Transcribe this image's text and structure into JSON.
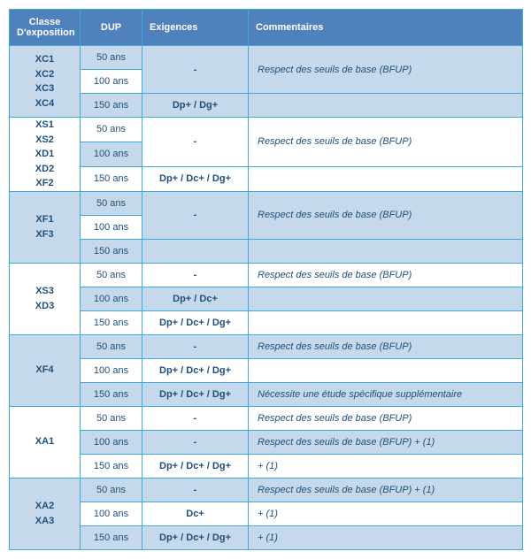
{
  "headers": {
    "classe": "Classe\nD'exposition",
    "dup": "DUP",
    "exigences": "Exigences",
    "commentaires": "Commentaires"
  },
  "groups": [
    {
      "classe": "XC1\nXC2\nXC3\nXC4",
      "bg": "blue",
      "rows": [
        {
          "dup": "50 ans",
          "exig": "",
          "comm": "",
          "exig_rowspan": 2,
          "comm_rowspan": 2,
          "exig_text": "-",
          "comm_text": "Respect des seuils de base (BFUP)"
        },
        {
          "dup": "100 ans"
        },
        {
          "dup": "150 ans",
          "exig_text": "Dp+ / Dg+",
          "comm_text": ""
        }
      ]
    },
    {
      "classe": "XS1\nXS2\nXD1\nXD2\nXF2",
      "bg": "white",
      "rows": [
        {
          "dup": "50 ans",
          "exig_rowspan": 2,
          "comm_rowspan": 2,
          "exig_text": "-",
          "comm_text": "Respect des seuils de base (BFUP)"
        },
        {
          "dup": "100 ans"
        },
        {
          "dup": "150 ans",
          "exig_text": "Dp+ / Dc+ / Dg+",
          "comm_text": ""
        }
      ]
    },
    {
      "classe": "XF1\nXF3",
      "bg": "blue",
      "rows": [
        {
          "dup": "50 ans",
          "exig_rowspan": 2,
          "comm_rowspan": 2,
          "exig_text": "-",
          "comm_text": "Respect des seuils de base (BFUP)"
        },
        {
          "dup": "100 ans"
        },
        {
          "dup": "150 ans",
          "exig_text": "",
          "comm_text": ""
        }
      ]
    },
    {
      "classe": "XS3\nXD3",
      "bg": "white",
      "rows": [
        {
          "dup": "50 ans",
          "exig_text": "-",
          "comm_text": "Respect des seuils de base (BFUP)"
        },
        {
          "dup": "100 ans",
          "exig_text": "Dp+ / Dc+",
          "comm_text": ""
        },
        {
          "dup": "150 ans",
          "exig_text": "Dp+ / Dc+ / Dg+",
          "comm_text": ""
        }
      ]
    },
    {
      "classe": "XF4",
      "bg": "blue",
      "rows": [
        {
          "dup": "50 ans",
          "exig_text": "-",
          "comm_text": "Respect des seuils de base (BFUP)"
        },
        {
          "dup": "100 ans",
          "exig_text": "Dp+ / Dc+ / Dg+",
          "comm_text": ""
        },
        {
          "dup": "150 ans",
          "exig_text": "Dp+ / Dc+ / Dg+",
          "comm_text": "Nécessite une étude spécifique supplémentaire"
        }
      ]
    },
    {
      "classe": "XA1",
      "bg": "white",
      "rows": [
        {
          "dup": "50 ans",
          "exig_text": "-",
          "comm_text": "Respect des seuils de base (BFUP)"
        },
        {
          "dup": "100 ans",
          "exig_text": "-",
          "comm_text": "Respect des seuils de base (BFUP) + (1)"
        },
        {
          "dup": "150 ans",
          "exig_text": "Dp+ / Dc+ / Dg+",
          "comm_text": "+ (1)"
        }
      ]
    },
    {
      "classe": "XA2\nXA3",
      "bg": "blue",
      "rows": [
        {
          "dup": "50 ans",
          "exig_text": "-",
          "comm_text": "Respect des seuils de base (BFUP) + (1)"
        },
        {
          "dup": "100 ans",
          "exig_text": "Dc+",
          "comm_text": "+ (1)"
        },
        {
          "dup": "150 ans",
          "exig_text": "Dp+ / Dc+ / Dg+",
          "comm_text": "+ (1)"
        }
      ]
    }
  ]
}
